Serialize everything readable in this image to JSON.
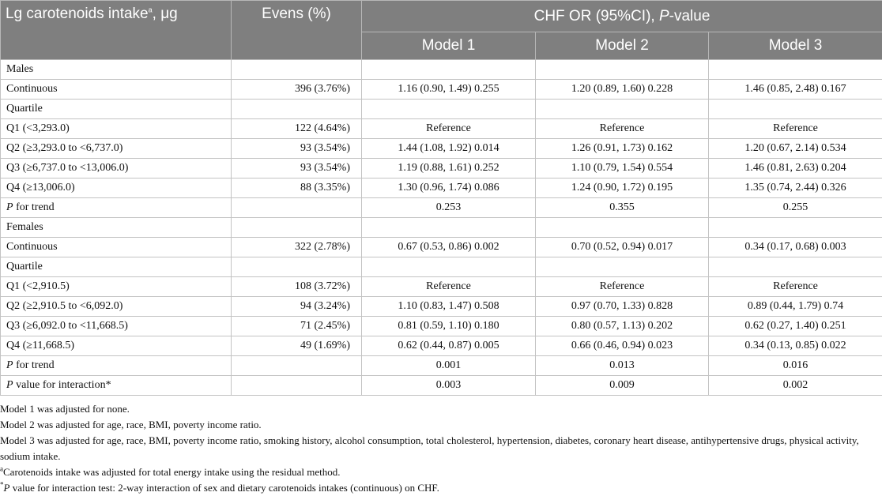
{
  "header": {
    "col1_label": "Lg carotenoids intake",
    "col1_sup": "a",
    "col1_unit": ", μg",
    "col2_label": "Evens (%)",
    "group_label": "CHF OR (95%CI), ",
    "group_label_italic": "P",
    "group_label_tail": "-value",
    "models": [
      "Model 1",
      "Model 2",
      "Model 3"
    ]
  },
  "rows": [
    {
      "label": "Males",
      "events": "",
      "m1": "",
      "m2": "",
      "m3": ""
    },
    {
      "label": "Continuous",
      "events": "396 (3.76%)",
      "m1": "1.16 (0.90, 1.49) 0.255",
      "m2": "1.20 (0.89, 1.60) 0.228",
      "m3": "1.46 (0.85, 2.48) 0.167"
    },
    {
      "label": "Quartile",
      "events": "",
      "m1": "",
      "m2": "",
      "m3": ""
    },
    {
      "label": "Q1 (<3,293.0)",
      "events": "122 (4.64%)",
      "m1": "Reference",
      "m2": "Reference",
      "m3": "Reference"
    },
    {
      "label": "Q2 (≥3,293.0 to <6,737.0)",
      "events": "93 (3.54%)",
      "m1": "1.44 (1.08, 1.92) 0.014",
      "m2": "1.26 (0.91, 1.73) 0.162",
      "m3": "1.20 (0.67, 2.14) 0.534"
    },
    {
      "label": "Q3 (≥6,737.0 to <13,006.0)",
      "events": "93 (3.54%)",
      "m1": "1.19 (0.88, 1.61) 0.252",
      "m2": "1.10 (0.79, 1.54) 0.554",
      "m3": "1.46 (0.81, 2.63) 0.204"
    },
    {
      "label": "Q4 (≥13,006.0)",
      "events": "88 (3.35%)",
      "m1": "1.30 (0.96, 1.74) 0.086",
      "m2": "1.24 (0.90, 1.72) 0.195",
      "m3": "1.35 (0.74, 2.44) 0.326"
    },
    {
      "label_italic": "P",
      "label": " for trend",
      "events": "",
      "m1": "0.253",
      "m2": "0.355",
      "m3": "0.255"
    },
    {
      "label": "Females",
      "events": "",
      "m1": "",
      "m2": "",
      "m3": ""
    },
    {
      "label": "Continuous",
      "events": "322 (2.78%)",
      "m1": "0.67 (0.53, 0.86) 0.002",
      "m2": "0.70 (0.52, 0.94) 0.017",
      "m3": "0.34 (0.17, 0.68) 0.003"
    },
    {
      "label": "Quartile",
      "events": "",
      "m1": "",
      "m2": "",
      "m3": ""
    },
    {
      "label": "Q1 (<2,910.5)",
      "events": "108 (3.72%)",
      "m1": "Reference",
      "m2": "Reference",
      "m3": "Reference"
    },
    {
      "label": "Q2 (≥2,910.5 to <6,092.0)",
      "events": "94 (3.24%)",
      "m1": "1.10 (0.83, 1.47) 0.508",
      "m2": "0.97 (0.70, 1.33) 0.828",
      "m3": "0.89 (0.44, 1.79) 0.74"
    },
    {
      "label": "Q3 (≥6,092.0 to <11,668.5)",
      "events": "71 (2.45%)",
      "m1": "0.81 (0.59, 1.10) 0.180",
      "m2": "0.80 (0.57, 1.13) 0.202",
      "m3": "0.62 (0.27, 1.40) 0.251"
    },
    {
      "label": "Q4 (≥11,668.5)",
      "events": "49 (1.69%)",
      "m1": "0.62 (0.44, 0.87) 0.005",
      "m2": "0.66 (0.46, 0.94) 0.023",
      "m3": "0.34 (0.13, 0.85) 0.022"
    },
    {
      "label_italic": "P",
      "label": " for trend",
      "events": "",
      "m1": "0.001",
      "m2": "0.013",
      "m3": "0.016"
    },
    {
      "label_italic": "P",
      "label": " value for interaction*",
      "events": "",
      "m1": "0.003",
      "m2": "0.009",
      "m3": "0.002"
    }
  ],
  "footnotes": {
    "model1": "Model 1 was adjusted for none.",
    "model2": "Model 2 was adjusted for age, race, BMI, poverty income ratio.",
    "model3": "Model 3 was adjusted for age, race, BMI, poverty income ratio, smoking history, alcohol consumption, total cholesterol, hypertension, diabetes, coronary heart disease, antihypertensive drugs, physical activity, sodium intake.",
    "note_a_mark": "a",
    "note_a": "Carotenoids intake was adjusted for total energy intake using the residual method.",
    "note_star_mark": "*",
    "note_star_italic": "P",
    "note_star": " value for interaction test: 2-way interaction of sex and dietary carotenoids intakes (continuous) on CHF."
  }
}
